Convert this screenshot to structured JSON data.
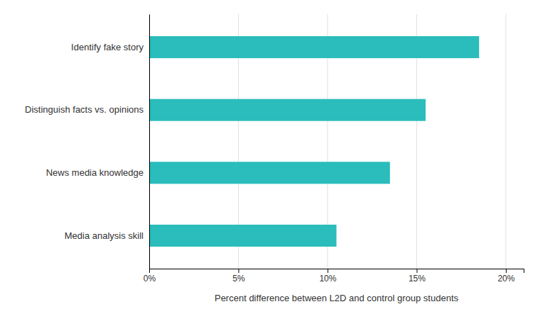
{
  "chart_data": {
    "type": "bar",
    "orientation": "horizontal",
    "xlabel": "Percent difference between L2D and control group students",
    "categories": [
      "Identify fake story",
      "Distinguish facts vs. opinions",
      "News media knowledge",
      "Media analysis skill"
    ],
    "values": [
      0.185,
      0.155,
      0.135,
      0.105
    ],
    "color": "#2BBCBC",
    "xlim": [
      0,
      0.21
    ],
    "xticks": [
      {
        "value": 0,
        "label": "0%"
      },
      {
        "value": 0.05,
        "label": "5%"
      },
      {
        "value": 0.1,
        "label": "10%"
      },
      {
        "value": 0.15,
        "label": "15%"
      },
      {
        "value": 0.2,
        "label": "20%"
      }
    ],
    "grid": true
  }
}
